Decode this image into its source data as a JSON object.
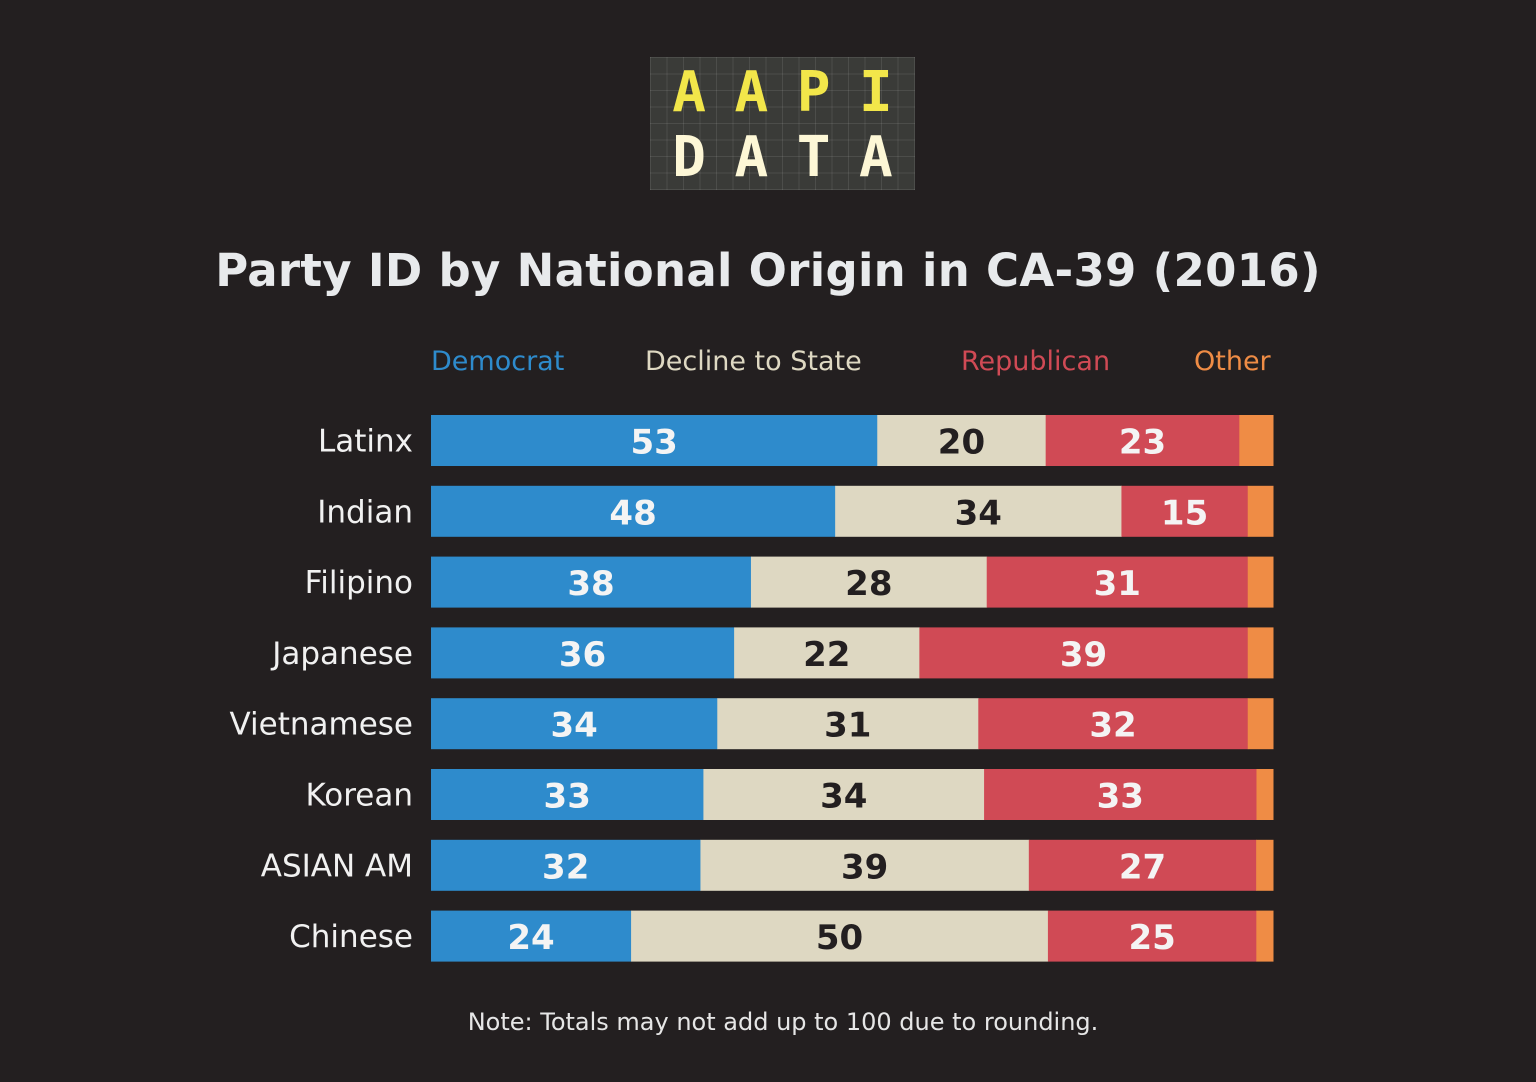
{
  "logo": {
    "line1": [
      "A",
      "A",
      "P",
      "I"
    ],
    "line2": [
      "D",
      "A",
      "T",
      "A"
    ]
  },
  "note": "Note: Totals may not add up to 100 due to rounding.",
  "chart_data": {
    "type": "bar",
    "orientation": "horizontal",
    "stacked": true,
    "title": "Party ID by National Origin in CA-39 (2016)",
    "xlabel": "",
    "ylabel": "",
    "xlim": [
      0,
      100
    ],
    "grid": false,
    "legend_position": "top",
    "categories": [
      "Latinx",
      "Indian",
      "Filipino",
      "Japanese",
      "Vietnamese",
      "Korean",
      "ASIAN AM",
      "Chinese"
    ],
    "series": [
      {
        "name": "Democrat",
        "color": "#2e8bcc",
        "label_color": "#f4f4f4",
        "show_labels": true,
        "values": [
          53,
          48,
          38,
          36,
          34,
          33,
          32,
          24
        ]
      },
      {
        "name": "Decline to State",
        "color": "#ded8c2",
        "label_color": "#231f20",
        "show_labels": true,
        "values": [
          20,
          34,
          28,
          22,
          31,
          34,
          39,
          50
        ]
      },
      {
        "name": "Republican",
        "color": "#d04a55",
        "label_color": "#f4f4f4",
        "show_labels": true,
        "values": [
          23,
          15,
          31,
          39,
          32,
          33,
          27,
          25
        ]
      },
      {
        "name": "Other",
        "color": "#ef8c45",
        "label_color": "#f4f4f4",
        "show_labels": false,
        "values": [
          4,
          3,
          3,
          3,
          3,
          2,
          2,
          2
        ]
      }
    ],
    "legend_text_colors": [
      "#2e8bcc",
      "#ded8c2",
      "#d04a55",
      "#ef8c45"
    ]
  }
}
